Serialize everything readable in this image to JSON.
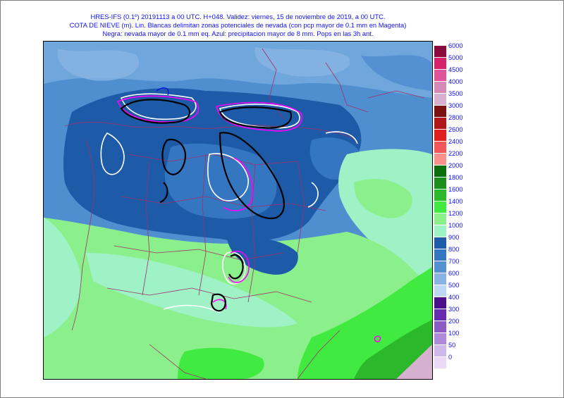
{
  "title": {
    "line1": "HRES-IFS (0.1º) 20191113 a 00 UTC.  H+048. Validez: viernes, 15 de noviembre de 2019,  a  00 UTC.",
    "line2": "COTA DE NIEVE (m). Lin. Blancas delimitan zonas potenciales de nevada (con pcp mayor de 0.1 mm en Magenta)",
    "line3": "Negra: nevada mayor de 0.1 mm eq. Azul: precipitacion mayor de 8 mm. Pops en las 3h ant."
  },
  "legend": {
    "levels": [
      "6000",
      "5000",
      "4500",
      "4000",
      "3500",
      "3000",
      "2800",
      "2600",
      "2400",
      "2200",
      "2000",
      "1800",
      "1600",
      "1400",
      "1200",
      "1000",
      "900",
      "800",
      "700",
      "600",
      "500",
      "400",
      "300",
      "200",
      "100",
      "50",
      "0"
    ],
    "colors": [
      "#8b0a3d",
      "#d6246b",
      "#e0559a",
      "#d789b6",
      "#d7afcf",
      "#7a1212",
      "#b01818",
      "#e0201e",
      "#f2585a",
      "#f8908c",
      "#0a6e0a",
      "#1b8e1b",
      "#2bb82b",
      "#40ea40",
      "#8bf08b",
      "#9ef2c6",
      "#1d5aa8",
      "#3576c1",
      "#5591d2",
      "#87b4e4",
      "#bdd7f2",
      "#4b0f8a",
      "#6a2cae",
      "#8c5ac4",
      "#ae8ad8",
      "#cfb8ea",
      "#ead9f8"
    ]
  },
  "map": {
    "description_colors": {
      "sea_light": "#9ef2c6",
      "land_green": "#8bf08b",
      "high_blue": "#1d5aa8",
      "mid_blue": "#3576c1",
      "snow_line": "#ffffff",
      "snow_pcp": "#ff00ff",
      "snowfall": "#000000",
      "borders": "#a0306a"
    }
  }
}
